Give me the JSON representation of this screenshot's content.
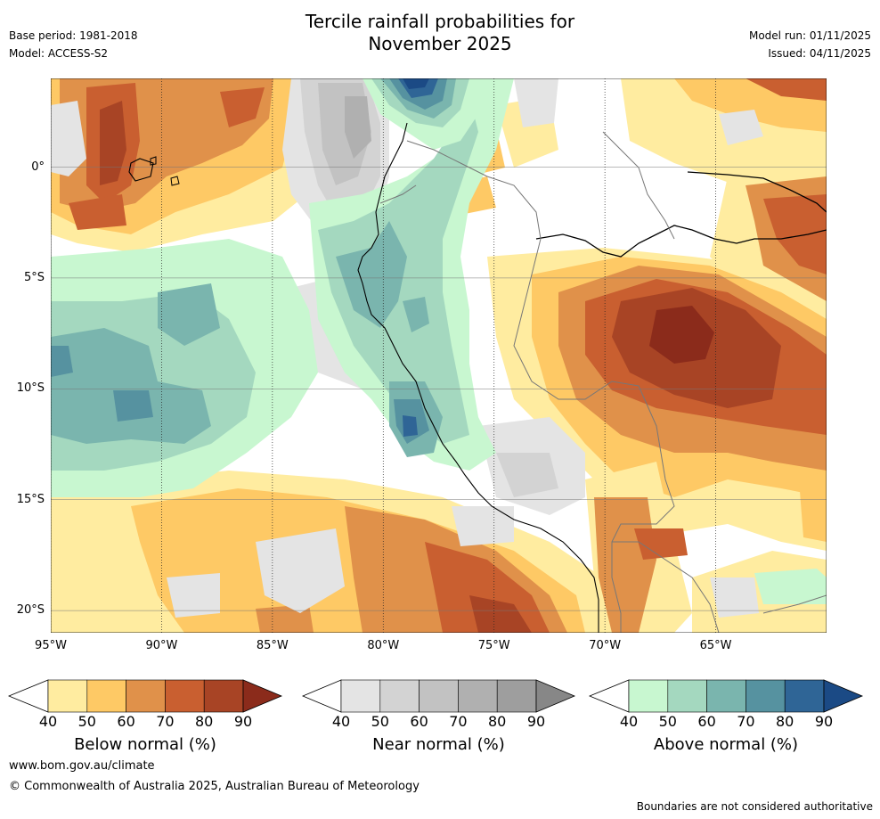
{
  "header": {
    "title_line1": "Tercile rainfall probabilities for",
    "title_line2": "November 2025",
    "base_period": "Base period: 1981-2018",
    "model": "Model: ACCESS-S2",
    "model_run": "Model run: 01/11/2025",
    "issued": "Issued: 04/11/2025"
  },
  "map": {
    "extent": {
      "lon_min": -95,
      "lon_max": -60,
      "lat_min": -21,
      "lat_max": 4
    },
    "lat_ticks": [
      {
        "value": 0,
        "label": "0°"
      },
      {
        "value": -5,
        "label": "5°S"
      },
      {
        "value": -10,
        "label": "10°S"
      },
      {
        "value": -15,
        "label": "15°S"
      },
      {
        "value": -20,
        "label": "20°S"
      }
    ],
    "lon_ticks": [
      {
        "value": -95,
        "label": "95°W"
      },
      {
        "value": -90,
        "label": "90°W"
      },
      {
        "value": -85,
        "label": "85°W"
      },
      {
        "value": -80,
        "label": "80°W"
      },
      {
        "value": -75,
        "label": "75°W"
      },
      {
        "value": -70,
        "label": "70°W"
      },
      {
        "value": -65,
        "label": "65°W"
      }
    ],
    "colors": {
      "below": [
        "#ffeca0",
        "#fec965",
        "#e0914a",
        "#c95f30",
        "#a84425",
        "#8b2b1b"
      ],
      "near": [
        "#e4e4e4",
        "#d3d3d3",
        "#c2c2c2",
        "#b0b0b0",
        "#9e9e9e",
        "#878787"
      ],
      "above": [
        "#c8f7d0",
        "#a4d8bf",
        "#7ab5ae",
        "#5692a0",
        "#2f6596",
        "#1b4a85"
      ]
    }
  },
  "colorbars": [
    {
      "id": "below",
      "title": "Below normal (%)",
      "ticks": [
        "40",
        "50",
        "60",
        "70",
        "80",
        "90"
      ]
    },
    {
      "id": "near",
      "title": "Near normal (%)",
      "ticks": [
        "40",
        "50",
        "60",
        "70",
        "80",
        "90"
      ]
    },
    {
      "id": "above",
      "title": "Above normal (%)",
      "ticks": [
        "40",
        "50",
        "60",
        "70",
        "80",
        "90"
      ]
    }
  ],
  "footer": {
    "url": "www.bom.gov.au/climate",
    "copyright": "© Commonwealth of Australia 2025, Australian Bureau of Meteorology",
    "note": "Boundaries are not considered authoritative"
  }
}
